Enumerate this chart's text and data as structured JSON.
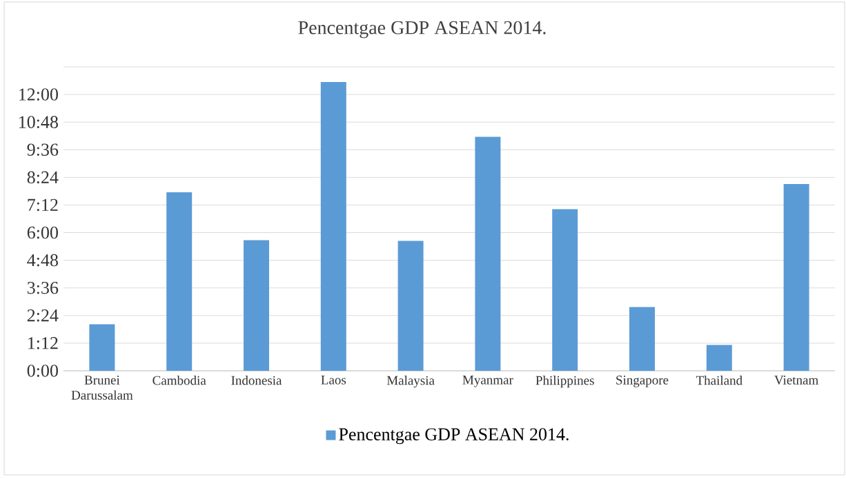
{
  "chart_data": {
    "type": "bar",
    "title": "Pencentgae  GDP ASEAN 2014.",
    "categories": [
      "Brunei Darussalam",
      "Cambodia",
      "Indonesia",
      "Laos",
      "Malaysia",
      "Myanmar",
      "Philippines",
      "Singapore",
      "Thailand",
      "Vietnam"
    ],
    "series": [
      {
        "name": "Pencentgae GDP ASEAN 2014.",
        "color": "#5b9bd5",
        "values": [
          2.02,
          7.75,
          5.67,
          12.54,
          5.64,
          10.16,
          7.02,
          2.77,
          1.12,
          8.11
        ]
      }
    ],
    "ylim": [
      0,
      13.2
    ],
    "yticks": [
      {
        "value": 0,
        "label": "0:00"
      },
      {
        "value": 1.2,
        "label": "1:12"
      },
      {
        "value": 2.4,
        "label": "2:24"
      },
      {
        "value": 3.6,
        "label": "3:36"
      },
      {
        "value": 4.8,
        "label": "4:48"
      },
      {
        "value": 6,
        "label": "6:00"
      },
      {
        "value": 7.2,
        "label": "7:12"
      },
      {
        "value": 8.4,
        "label": "8:24"
      },
      {
        "value": 9.6,
        "label": "9:36"
      },
      {
        "value": 10.8,
        "label": "10:48"
      },
      {
        "value": 12,
        "label": "12:00"
      },
      {
        "value": 13.2,
        "label": null
      }
    ],
    "grid": "y",
    "legend": "bottom"
  }
}
